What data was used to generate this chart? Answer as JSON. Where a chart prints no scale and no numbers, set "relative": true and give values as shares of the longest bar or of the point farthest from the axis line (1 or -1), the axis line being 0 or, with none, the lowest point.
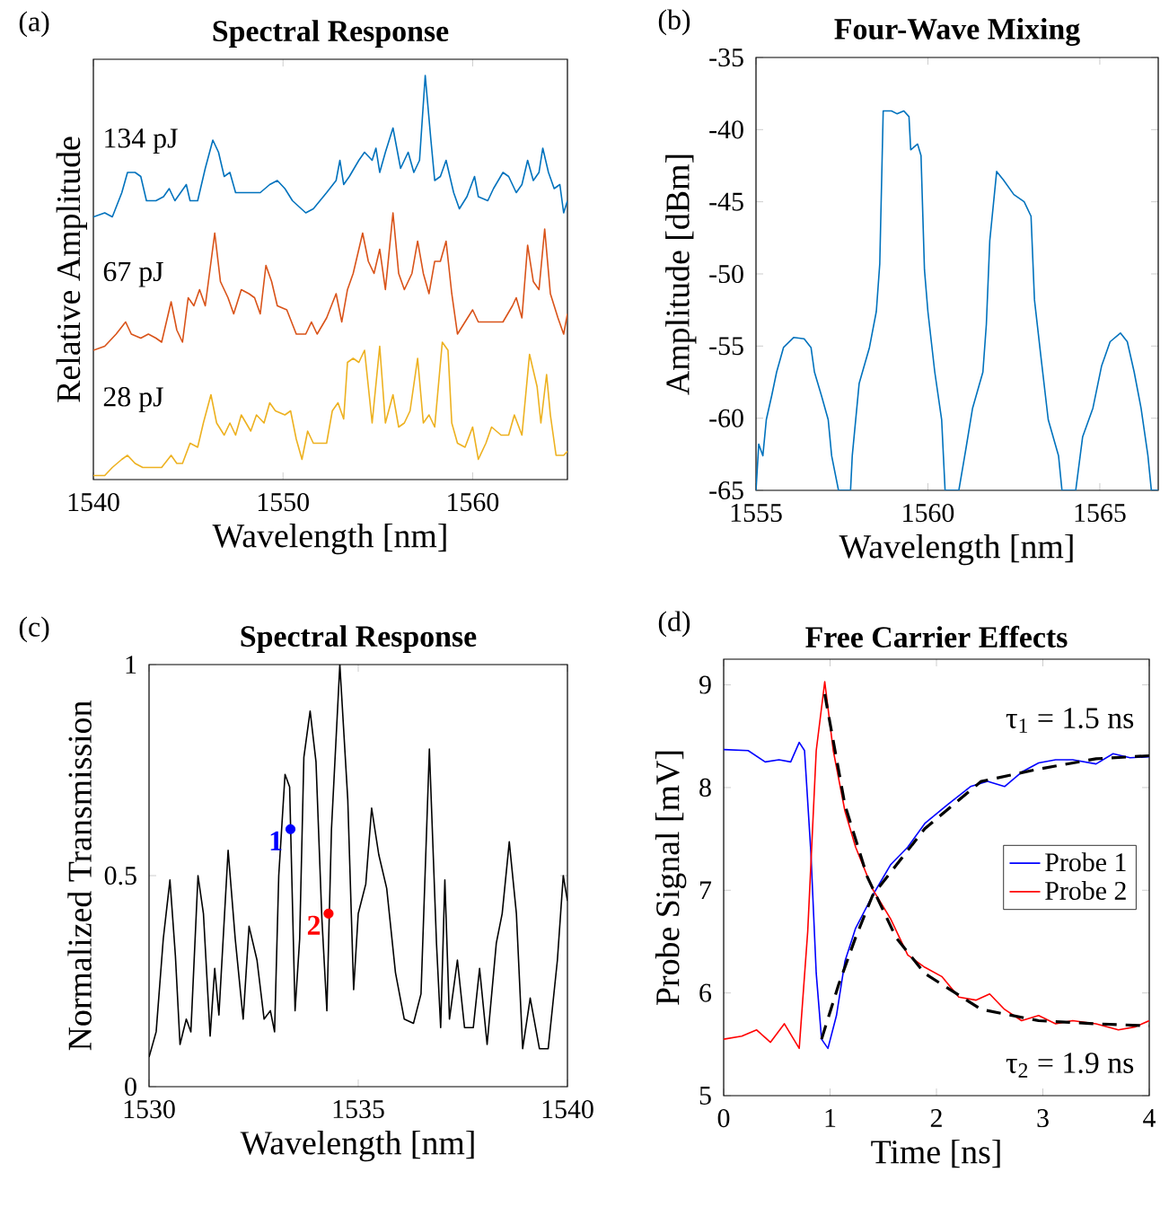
{
  "chart_data": [
    {
      "type": "line",
      "title": "Spectral Response",
      "xlabel": "Wavelength [nm]",
      "ylabel": "Relative Amplitude",
      "relative": true,
      "tick_labels": "x",
      "xlim": [
        1540,
        1565
      ],
      "xticks": [
        1540,
        1550,
        1560
      ],
      "annotations": [
        "(a)"
      ],
      "legend": false,
      "series": [
        {
          "name": "134 pJ",
          "color": "#0072bd",
          "x": [
            1540.0,
            1540.6,
            1541.0,
            1541.5,
            1541.8,
            1542.2,
            1542.5,
            1542.8,
            1543.3,
            1543.7,
            1544.0,
            1544.3,
            1544.6,
            1544.9,
            1545.1,
            1545.5,
            1545.9,
            1546.3,
            1546.6,
            1546.9,
            1547.2,
            1547.5,
            1548.0,
            1548.3,
            1548.8,
            1549.3,
            1549.7,
            1550.1,
            1550.5,
            1551.2,
            1551.6,
            1552.3,
            1552.8,
            1553.0,
            1553.2,
            1553.5,
            1554.0,
            1554.3,
            1554.7,
            1554.9,
            1555.1,
            1555.4,
            1555.8,
            1556.0,
            1556.2,
            1556.6,
            1556.9,
            1557.2,
            1557.5,
            1557.8,
            1558.0,
            1558.3,
            1558.6,
            1559.0,
            1559.3,
            1559.7,
            1560.1,
            1560.3,
            1560.8,
            1561.1,
            1561.6,
            1561.9,
            1562.3,
            1562.6,
            1562.9,
            1563.2,
            1563.5,
            1563.7,
            1564.0,
            1564.3,
            1564.6,
            1564.8,
            1565.0
          ],
          "values": [
            0.65,
            0.66,
            0.65,
            0.71,
            0.76,
            0.76,
            0.75,
            0.69,
            0.69,
            0.7,
            0.72,
            0.69,
            0.71,
            0.73,
            0.69,
            0.69,
            0.77,
            0.84,
            0.81,
            0.75,
            0.76,
            0.71,
            0.71,
            0.71,
            0.71,
            0.73,
            0.74,
            0.72,
            0.69,
            0.66,
            0.67,
            0.71,
            0.74,
            0.79,
            0.73,
            0.75,
            0.79,
            0.81,
            0.79,
            0.82,
            0.76,
            0.81,
            0.87,
            0.82,
            0.77,
            0.81,
            0.76,
            0.79,
            1.0,
            0.84,
            0.74,
            0.75,
            0.79,
            0.71,
            0.67,
            0.7,
            0.75,
            0.7,
            0.69,
            0.72,
            0.76,
            0.75,
            0.71,
            0.73,
            0.79,
            0.74,
            0.76,
            0.82,
            0.76,
            0.72,
            0.73,
            0.66,
            0.69
          ]
        },
        {
          "name": "67 pJ",
          "color": "#d95319",
          "x": [
            1540.0,
            1540.6,
            1541.2,
            1541.7,
            1542.0,
            1542.5,
            1542.9,
            1543.3,
            1543.6,
            1544.1,
            1544.4,
            1544.7,
            1545.0,
            1545.3,
            1545.6,
            1545.9,
            1546.4,
            1546.7,
            1547.1,
            1547.4,
            1547.8,
            1548.2,
            1548.5,
            1548.8,
            1549.1,
            1549.4,
            1549.7,
            1550.2,
            1550.7,
            1551.2,
            1551.5,
            1551.8,
            1552.3,
            1552.8,
            1553.1,
            1553.4,
            1553.7,
            1554.2,
            1554.5,
            1554.8,
            1555.1,
            1555.4,
            1555.8,
            1556.1,
            1556.4,
            1556.8,
            1557.1,
            1557.4,
            1557.7,
            1558.0,
            1558.3,
            1558.6,
            1558.9,
            1559.2,
            1559.6,
            1560.0,
            1560.3,
            1560.7,
            1561.1,
            1561.6,
            1562.1,
            1562.3,
            1562.6,
            1562.9,
            1563.2,
            1563.5,
            1563.8,
            1564.1,
            1564.5,
            1564.8,
            1565.0
          ],
          "values": [
            0.32,
            0.33,
            0.36,
            0.39,
            0.36,
            0.35,
            0.36,
            0.35,
            0.34,
            0.44,
            0.37,
            0.34,
            0.45,
            0.43,
            0.47,
            0.43,
            0.61,
            0.49,
            0.45,
            0.41,
            0.47,
            0.46,
            0.45,
            0.41,
            0.53,
            0.49,
            0.43,
            0.42,
            0.36,
            0.36,
            0.39,
            0.36,
            0.4,
            0.46,
            0.39,
            0.47,
            0.51,
            0.61,
            0.54,
            0.51,
            0.57,
            0.47,
            0.66,
            0.51,
            0.47,
            0.51,
            0.59,
            0.51,
            0.46,
            0.54,
            0.54,
            0.59,
            0.46,
            0.36,
            0.39,
            0.42,
            0.39,
            0.39,
            0.39,
            0.39,
            0.43,
            0.45,
            0.4,
            0.58,
            0.49,
            0.47,
            0.62,
            0.46,
            0.4,
            0.36,
            0.41
          ]
        },
        {
          "name": "28 pJ",
          "color": "#edb120",
          "x": [
            1540.0,
            1540.6,
            1541.0,
            1541.5,
            1541.8,
            1542.2,
            1542.6,
            1543.1,
            1543.6,
            1544.1,
            1544.4,
            1544.7,
            1545.1,
            1545.5,
            1545.8,
            1546.2,
            1546.5,
            1546.9,
            1547.2,
            1547.5,
            1547.8,
            1548.3,
            1548.6,
            1549.0,
            1549.3,
            1549.6,
            1550.1,
            1550.4,
            1550.7,
            1551.0,
            1551.3,
            1551.6,
            1552.0,
            1552.3,
            1552.6,
            1552.9,
            1553.2,
            1553.4,
            1553.7,
            1554.0,
            1554.3,
            1554.7,
            1555.1,
            1555.4,
            1555.8,
            1556.1,
            1556.4,
            1556.7,
            1557.1,
            1557.4,
            1557.7,
            1558.0,
            1558.4,
            1558.7,
            1558.9,
            1559.2,
            1559.6,
            1560.0,
            1560.3,
            1560.7,
            1561.0,
            1561.5,
            1561.9,
            1562.2,
            1562.6,
            1563.0,
            1563.4,
            1563.6,
            1563.9,
            1564.1,
            1564.4,
            1564.8,
            1565.0
          ],
          "values": [
            0.01,
            0.01,
            0.03,
            0.05,
            0.06,
            0.04,
            0.03,
            0.03,
            0.03,
            0.06,
            0.04,
            0.04,
            0.09,
            0.08,
            0.14,
            0.21,
            0.14,
            0.11,
            0.14,
            0.11,
            0.16,
            0.12,
            0.16,
            0.14,
            0.19,
            0.17,
            0.16,
            0.17,
            0.1,
            0.05,
            0.12,
            0.09,
            0.09,
            0.09,
            0.17,
            0.19,
            0.15,
            0.29,
            0.3,
            0.29,
            0.32,
            0.14,
            0.33,
            0.14,
            0.21,
            0.13,
            0.14,
            0.17,
            0.3,
            0.14,
            0.16,
            0.13,
            0.34,
            0.32,
            0.14,
            0.09,
            0.08,
            0.13,
            0.05,
            0.09,
            0.13,
            0.11,
            0.11,
            0.16,
            0.11,
            0.31,
            0.23,
            0.14,
            0.26,
            0.16,
            0.06,
            0.06,
            0.07
          ]
        }
      ]
    },
    {
      "type": "line",
      "title": "Four-Wave Mixing",
      "xlabel": "Wavelength [nm]",
      "ylabel": "Amplitude [dBm]",
      "xlim": [
        1555,
        1566.7
      ],
      "xticks": [
        1555,
        1560,
        1565
      ],
      "ylim": [
        -65,
        -35
      ],
      "yticks": [
        -65,
        -60,
        -55,
        -50,
        -45,
        -40,
        -35
      ],
      "annotations": [
        "(b)"
      ],
      "legend": false,
      "series": [
        {
          "color": "#0072bd",
          "x": [
            1555.0,
            1555.08,
            1555.2,
            1555.3,
            1555.46,
            1555.6,
            1555.8,
            1556.1,
            1556.4,
            1556.6,
            1556.7,
            1556.9,
            1557.1,
            1557.2,
            1557.4,
            1557.75,
            1557.8,
            1558.0,
            1558.3,
            1558.5,
            1558.6,
            1558.7,
            1558.94,
            1559.1,
            1559.3,
            1559.45,
            1559.5,
            1559.7,
            1559.8,
            1559.9,
            1560.0,
            1560.2,
            1560.4,
            1560.5,
            1560.9,
            1561.1,
            1561.3,
            1561.6,
            1561.7,
            1561.8,
            1562.0,
            1562.2,
            1562.5,
            1562.8,
            1563.0,
            1563.1,
            1563.3,
            1563.5,
            1563.8,
            1563.9,
            1564.3,
            1564.5,
            1564.8,
            1565.05,
            1565.3,
            1565.6,
            1565.8,
            1566.0,
            1566.2,
            1566.4,
            1566.5,
            1566.7
          ],
          "values": [
            -65,
            -61.8,
            -62.6,
            -60.1,
            -58.4,
            -56.8,
            -55.1,
            -54.4,
            -54.5,
            -55.1,
            -56.8,
            -58.4,
            -60.1,
            -62.6,
            -65,
            -65,
            -62.6,
            -57.6,
            -55.1,
            -52.6,
            -49.3,
            -38.7,
            -38.7,
            -38.9,
            -38.7,
            -39.1,
            -41.4,
            -41.0,
            -41.8,
            -49.7,
            -52.6,
            -56.8,
            -60.1,
            -65,
            -65,
            -62.2,
            -59.3,
            -56.8,
            -53.5,
            -47.7,
            -42.9,
            -43.5,
            -44.5,
            -45.0,
            -46.0,
            -51.8,
            -56.0,
            -60.1,
            -62.6,
            -65,
            -65,
            -61.3,
            -59.3,
            -56.4,
            -54.7,
            -54.1,
            -54.7,
            -56.8,
            -59.3,
            -62.6,
            -65,
            -65
          ]
        }
      ]
    },
    {
      "type": "line",
      "title": "Spectral Response",
      "xlabel": "Wavelength [nm]",
      "ylabel": "Normalized Transmission",
      "xlim": [
        1530,
        1540
      ],
      "xticks": [
        1530,
        1535,
        1540
      ],
      "ylim": [
        0,
        1
      ],
      "yticks": [
        0,
        0.5,
        1
      ],
      "annotations": [
        "(c)"
      ],
      "legend": false,
      "series": [
        {
          "color": "#000000",
          "x": [
            1530.0,
            1530.17,
            1530.34,
            1530.5,
            1530.63,
            1530.74,
            1530.89,
            1531.0,
            1531.17,
            1531.3,
            1531.46,
            1531.57,
            1531.67,
            1531.89,
            1532.06,
            1532.25,
            1532.39,
            1532.58,
            1532.75,
            1532.9,
            1533.0,
            1533.1,
            1533.25,
            1533.36,
            1533.49,
            1533.6,
            1533.7,
            1533.85,
            1533.99,
            1534.13,
            1534.25,
            1534.36,
            1534.56,
            1534.75,
            1534.89,
            1535.0,
            1535.18,
            1535.32,
            1535.49,
            1535.68,
            1535.89,
            1536.1,
            1536.32,
            1536.5,
            1536.7,
            1536.87,
            1536.97,
            1537.07,
            1537.18,
            1537.37,
            1537.54,
            1537.75,
            1537.9,
            1538.08,
            1538.3,
            1538.44,
            1538.61,
            1538.78,
            1538.93,
            1539.11,
            1539.33,
            1539.54,
            1539.76,
            1539.9,
            1540.0
          ],
          "values": [
            0.07,
            0.13,
            0.35,
            0.49,
            0.31,
            0.1,
            0.16,
            0.13,
            0.5,
            0.41,
            0.12,
            0.28,
            0.17,
            0.56,
            0.35,
            0.16,
            0.38,
            0.3,
            0.16,
            0.18,
            0.13,
            0.5,
            0.74,
            0.71,
            0.18,
            0.35,
            0.78,
            0.89,
            0.77,
            0.4,
            0.18,
            0.61,
            1.0,
            0.68,
            0.23,
            0.41,
            0.48,
            0.66,
            0.55,
            0.47,
            0.27,
            0.16,
            0.15,
            0.22,
            0.8,
            0.34,
            0.14,
            0.49,
            0.16,
            0.3,
            0.14,
            0.14,
            0.28,
            0.1,
            0.34,
            0.41,
            0.58,
            0.41,
            0.09,
            0.21,
            0.09,
            0.09,
            0.3,
            0.5,
            0.44
          ]
        },
        {
          "type": "scatter",
          "name": "1",
          "color": "#0000ff",
          "x": [
            1533.38
          ],
          "values": [
            0.61
          ]
        },
        {
          "type": "scatter",
          "name": "2",
          "color": "#ff0000",
          "x": [
            1534.29
          ],
          "values": [
            0.41
          ]
        }
      ]
    },
    {
      "type": "line",
      "title": "Free Carrier Effects",
      "xlabel": "Time [ns]",
      "ylabel": "Probe Signal [mV]",
      "xlim": [
        0,
        4
      ],
      "xticks": [
        0,
        1,
        2,
        3,
        4
      ],
      "ylim": [
        5,
        9.25
      ],
      "yticks": [
        5,
        6,
        7,
        8,
        9
      ],
      "legend": "right",
      "annotations": [
        "(d)",
        "τ$_{1}$ = 1.5 ns",
        "τ$_{2}$ = 1.9 ns"
      ],
      "series": [
        {
          "name": "Probe 1",
          "color": "#0000ff",
          "x": [
            0,
            0.23,
            0.39,
            0.52,
            0.63,
            0.71,
            0.76,
            0.82,
            0.87,
            0.92,
            0.98,
            1.06,
            1.14,
            1.24,
            1.4,
            1.57,
            1.73,
            1.89,
            2.1,
            2.32,
            2.48,
            2.64,
            2.8,
            2.96,
            3.12,
            3.28,
            3.5,
            3.66,
            3.82,
            4.0
          ],
          "values": [
            8.37,
            8.36,
            8.25,
            8.27,
            8.25,
            8.44,
            8.36,
            7.36,
            6.19,
            5.55,
            5.46,
            5.78,
            6.31,
            6.63,
            6.95,
            7.25,
            7.42,
            7.65,
            7.83,
            8.01,
            8.06,
            8.01,
            8.15,
            8.24,
            8.27,
            8.27,
            8.23,
            8.33,
            8.29,
            8.3
          ]
        },
        {
          "name": "Probe 2",
          "color": "#ff0000",
          "x": [
            0,
            0.17,
            0.31,
            0.44,
            0.57,
            0.71,
            0.79,
            0.87,
            0.95,
            1.03,
            1.14,
            1.24,
            1.4,
            1.57,
            1.73,
            1.89,
            2.05,
            2.21,
            2.37,
            2.5,
            2.64,
            2.8,
            2.96,
            3.12,
            3.28,
            3.5,
            3.71,
            3.87,
            4.0
          ],
          "values": [
            5.55,
            5.58,
            5.64,
            5.52,
            5.7,
            5.46,
            6.6,
            8.36,
            9.03,
            8.36,
            7.77,
            7.42,
            7.01,
            6.72,
            6.37,
            6.25,
            6.16,
            5.96,
            5.93,
            5.99,
            5.84,
            5.73,
            5.78,
            5.7,
            5.73,
            5.7,
            5.64,
            5.67,
            5.73
          ]
        },
        {
          "type": "line",
          "line_style": "dashed",
          "color": "#000000",
          "x": [
            0.92,
            1.08,
            1.24,
            1.4,
            1.89,
            2.42,
            2.96,
            3.5,
            4.0
          ],
          "values": [
            5.55,
            6.08,
            6.54,
            6.95,
            7.6,
            8.06,
            8.18,
            8.28,
            8.31
          ]
        },
        {
          "type": "line",
          "line_style": "dashed",
          "color": "#000000",
          "x": [
            0.95,
            1.14,
            1.35,
            1.62,
            1.89,
            2.42,
            2.96,
            3.5,
            4.0
          ],
          "values": [
            8.91,
            7.83,
            7.13,
            6.54,
            6.19,
            5.84,
            5.73,
            5.7,
            5.68
          ]
        }
      ]
    }
  ]
}
